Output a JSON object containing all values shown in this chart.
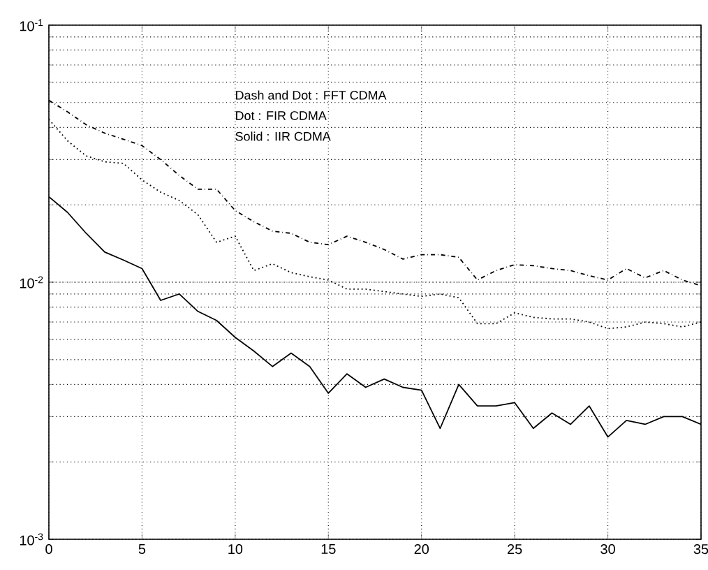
{
  "chart_data": {
    "type": "line",
    "annotations": [
      "Dash and Dot : FFT CDMA",
      "Dot : FIR CDMA",
      "Solid : IIR CDMA"
    ],
    "x": [
      0,
      1,
      2,
      3,
      4,
      5,
      6,
      7,
      8,
      9,
      10,
      11,
      12,
      13,
      14,
      15,
      16,
      17,
      18,
      19,
      20,
      21,
      22,
      23,
      24,
      25,
      26,
      27,
      28,
      29,
      30,
      31,
      32,
      33,
      34,
      35
    ],
    "series": [
      {
        "color": "#000000",
        "line_style": "dashdot",
        "values": [
          0.051,
          0.046,
          0.041,
          0.038,
          0.036,
          0.034,
          0.03,
          0.026,
          0.023,
          0.023,
          0.019,
          0.0172,
          0.0158,
          0.0155,
          0.0143,
          0.014,
          0.0151,
          0.0143,
          0.0134,
          0.0123,
          0.0128,
          0.0128,
          0.0125,
          0.0102,
          0.0111,
          0.0117,
          0.0116,
          0.0113,
          0.0111,
          0.0106,
          0.0102,
          0.0113,
          0.0104,
          0.0111,
          0.0102,
          0.0097
        ]
      },
      {
        "color": "#000000",
        "line_style": "dotted",
        "values": [
          0.043,
          0.0355,
          0.031,
          0.0294,
          0.029,
          0.025,
          0.0224,
          0.0208,
          0.0183,
          0.0143,
          0.0151,
          0.0111,
          0.0118,
          0.0109,
          0.0105,
          0.0102,
          0.0094,
          0.0094,
          0.0092,
          0.009,
          0.0088,
          0.009,
          0.0087,
          0.0069,
          0.0069,
          0.0076,
          0.0073,
          0.0072,
          0.0072,
          0.007,
          0.0066,
          0.0067,
          0.007,
          0.0069,
          0.0067,
          0.007
        ]
      },
      {
        "color": "#000000",
        "line_style": "solid",
        "values": [
          0.0215,
          0.0187,
          0.0155,
          0.0131,
          0.0122,
          0.0113,
          0.0085,
          0.009,
          0.0077,
          0.0071,
          0.0061,
          0.0054,
          0.0047,
          0.0053,
          0.0047,
          0.0037,
          0.0044,
          0.0039,
          0.0042,
          0.0039,
          0.0038,
          0.0027,
          0.004,
          0.0033,
          0.0033,
          0.0034,
          0.0027,
          0.0031,
          0.0028,
          0.0033,
          0.0025,
          0.0029,
          0.0028,
          0.003,
          0.003,
          0.0028
        ]
      }
    ],
    "log": "y",
    "grid": true,
    "marker": "none",
    "xlim": [
      0,
      35
    ],
    "xticks": [
      0,
      5,
      10,
      15,
      20,
      25,
      30,
      35
    ],
    "ylim": [
      0.001,
      0.1
    ],
    "yticks": [
      {
        "value": 0.001,
        "label": "10$^{-3}$"
      },
      {
        "value": 0.01,
        "label": "10$^{-2}$"
      },
      {
        "value": 0.1,
        "label": "10$^{-1}$"
      }
    ]
  }
}
